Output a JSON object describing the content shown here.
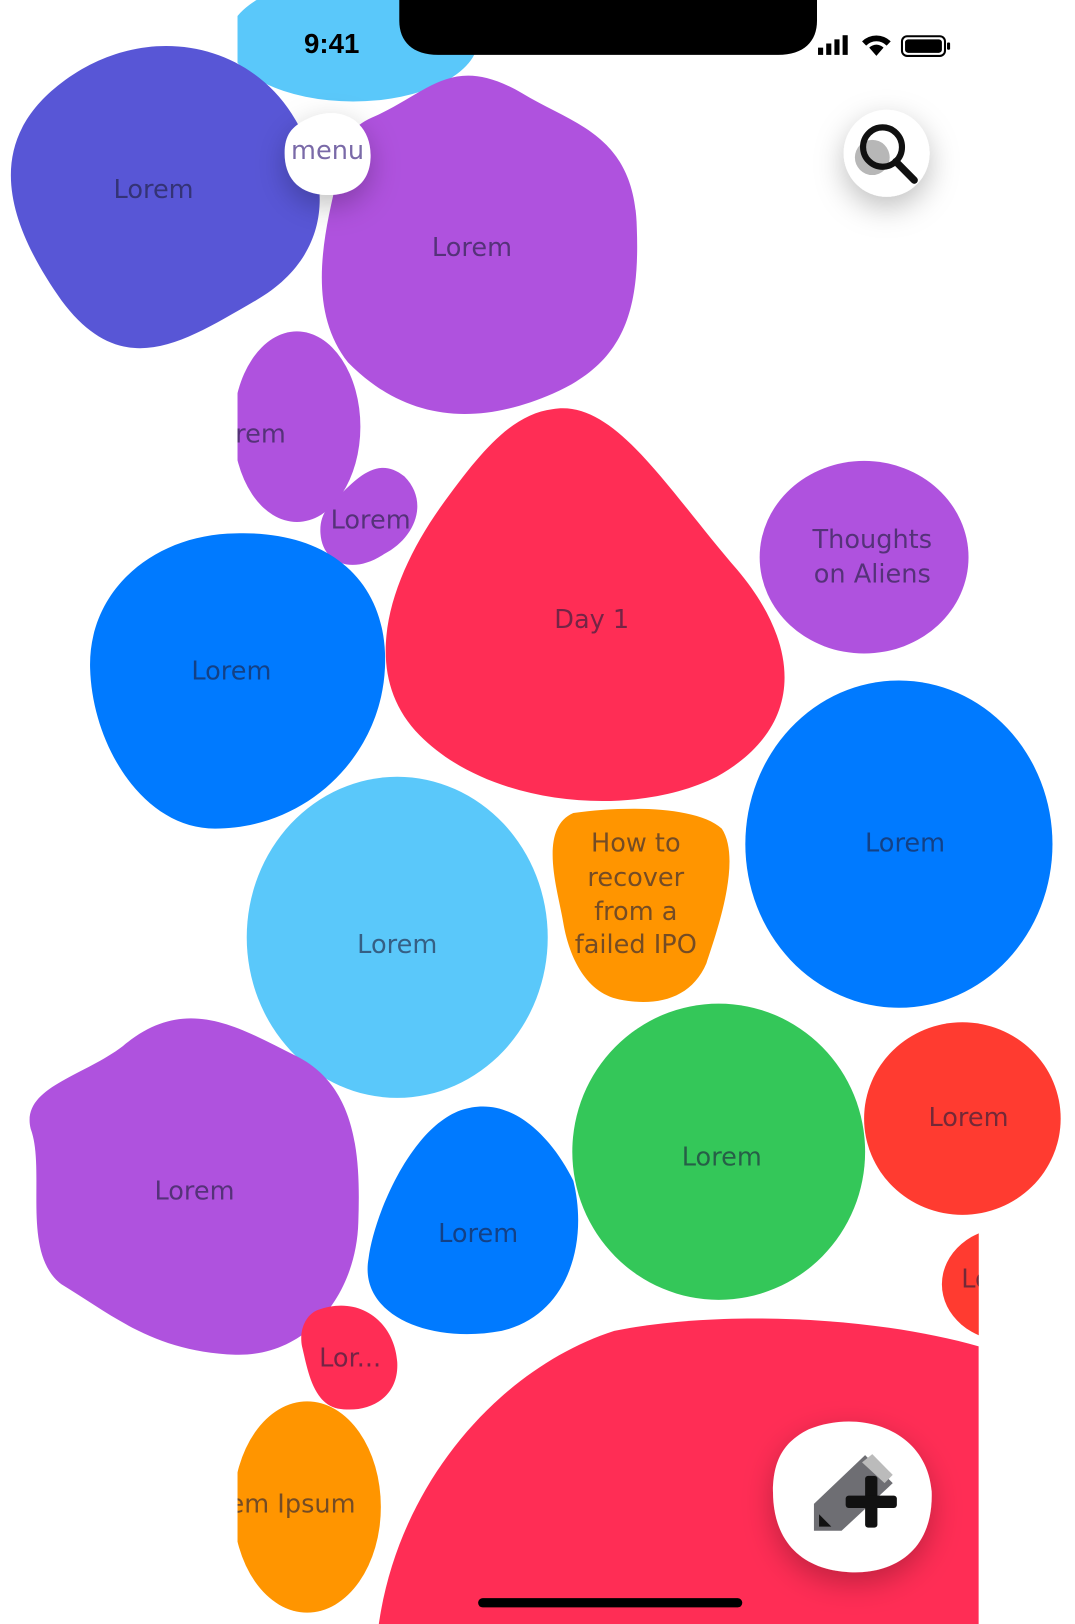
{
  "status_bar": {
    "time": "9:41"
  },
  "menu": "menu",
  "bubbles": [
    [
      "Lorem"
    ],
    [
      "Lorem"
    ],
    [
      "Lorem"
    ],
    [
      "Lorem"
    ],
    [
      "Day 1"
    ],
    [
      "Thoughts",
      "on Aliens"
    ],
    [
      "Lorem"
    ],
    [
      "Lorem"
    ],
    [
      "How to",
      "recover",
      "from a",
      "failed IPO"
    ],
    [
      "Lorem"
    ],
    [
      "Lorem"
    ],
    [
      "Lorem"
    ],
    [
      "Lorem"
    ],
    [
      "Lorem"
    ],
    [
      "Lorem"
    ],
    [
      "Lor..."
    ],
    [
      "Lorem Ipsum"
    ]
  ]
}
